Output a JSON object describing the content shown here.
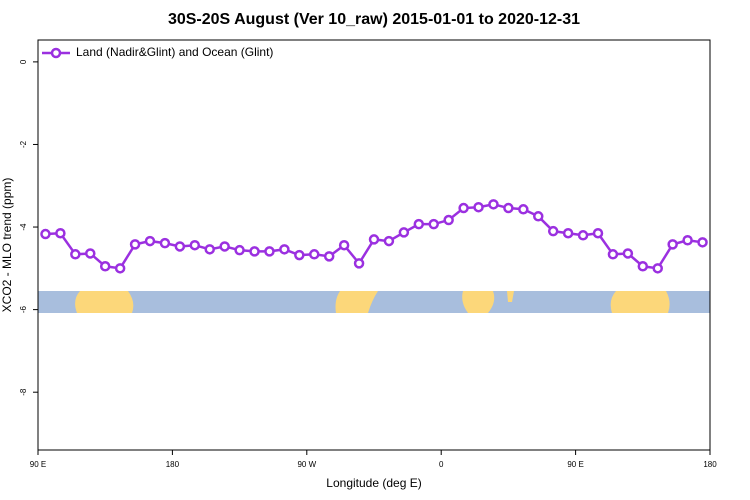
{
  "chart_data": {
    "type": "line",
    "title": "30S-20S August (Ver 10_raw)   2015-01-01 to 2020-12-31",
    "x_label": "Longitude (deg E)",
    "y_label": "XCO2 - MLO trend (ppm)",
    "x": [
      95,
      105,
      115,
      125,
      135,
      145,
      155,
      165,
      175,
      185,
      195,
      205,
      215,
      225,
      235,
      245,
      255,
      265,
      275,
      285,
      295,
      305,
      315,
      325,
      335,
      345,
      355,
      365,
      375,
      385,
      395,
      405,
      415,
      425,
      435,
      445,
      455,
      465,
      475,
      485,
      495,
      505,
      515,
      525,
      535
    ],
    "series": [
      {
        "name": "Land (Nadir&Glint) and Ocean (Glint)",
        "color": "#9b30e0",
        "values": [
          -4.17,
          -4.15,
          -4.66,
          -4.64,
          -4.95,
          -5.0,
          -4.42,
          -4.34,
          -4.39,
          -4.47,
          -4.44,
          -4.54,
          -4.47,
          -4.56,
          -4.59,
          -4.59,
          -4.54,
          -4.68,
          -4.66,
          -4.71,
          -4.44,
          -4.88,
          -4.3,
          -4.34,
          -4.13,
          -3.93,
          -3.93,
          -3.83,
          -3.54,
          -3.52,
          -3.45,
          -3.54,
          -3.57,
          -3.74,
          -4.1,
          -4.15,
          -4.2,
          -4.15,
          -4.66,
          -4.64,
          -4.95,
          -5.0,
          -4.42,
          -4.32,
          -4.37
        ]
      }
    ],
    "xlim": [
      90,
      540
    ],
    "xticks": [
      {
        "value": 90,
        "label": "90 E"
      },
      180,
      {
        "value": 270,
        "label": "90 W"
      },
      {
        "value": 360,
        "label": "0"
      },
      {
        "value": 450,
        "label": "90 E"
      },
      {
        "value": 540,
        "label": "180"
      }
    ],
    "ylim": [
      -9.4,
      0.53
    ],
    "yticks": [
      0,
      -2,
      -4,
      -6,
      -8
    ],
    "legend": "top-left"
  }
}
